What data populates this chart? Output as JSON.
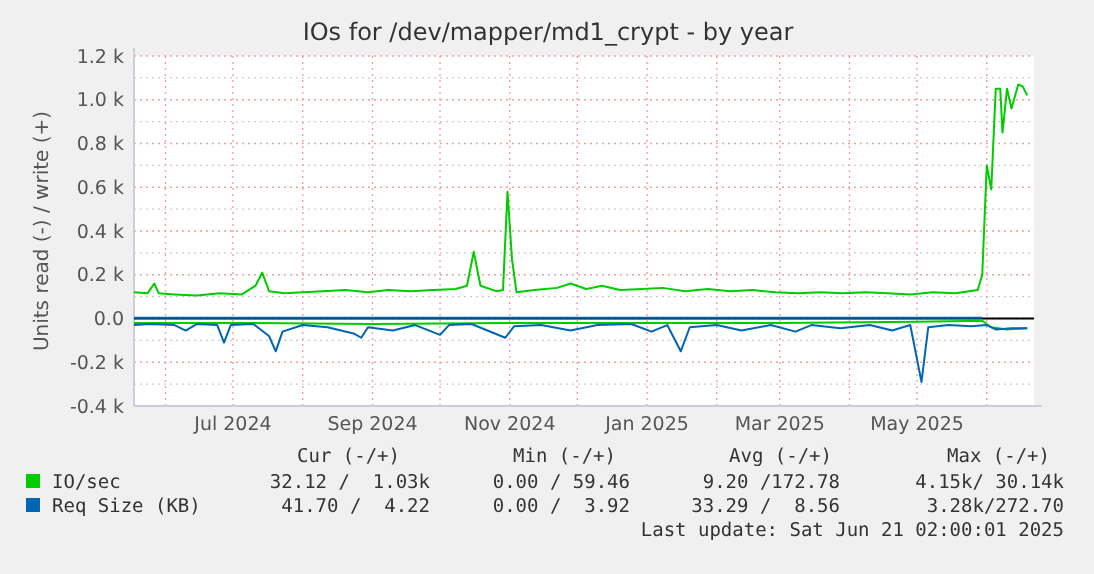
{
  "chart_data": {
    "type": "line",
    "title": "IOs for /dev/mapper/md1_crypt - by year",
    "ylabel": "Units read (-) / write (+)",
    "xlim": [
      "2024-05-18",
      "2025-06-22"
    ],
    "xticks": [
      {
        "value": "2024-06-01",
        "label": null
      },
      {
        "value": "2024-07-01",
        "label": "Jul 2024"
      },
      {
        "value": "2024-08-01",
        "label": null
      },
      {
        "value": "2024-09-01",
        "label": "Sep 2024"
      },
      {
        "value": "2024-10-01",
        "label": null
      },
      {
        "value": "2024-11-01",
        "label": "Nov 2024"
      },
      {
        "value": "2024-12-01",
        "label": null
      },
      {
        "value": "2025-01-01",
        "label": "Jan 2025"
      },
      {
        "value": "2025-02-01",
        "label": null
      },
      {
        "value": "2025-03-01",
        "label": "Mar 2025"
      },
      {
        "value": "2025-04-01",
        "label": null
      },
      {
        "value": "2025-05-01",
        "label": "May 2025"
      },
      {
        "value": "2025-06-01",
        "label": null
      }
    ],
    "ylim": [
      -400,
      1200
    ],
    "yticks": [
      {
        "value": -400,
        "label": "-0.4 k"
      },
      {
        "value": -300,
        "label": null
      },
      {
        "value": -200,
        "label": "-0.2 k"
      },
      {
        "value": -100,
        "label": null
      },
      {
        "value": 0,
        "label": "0.0"
      },
      {
        "value": 100,
        "label": null
      },
      {
        "value": 200,
        "label": "0.2 k"
      },
      {
        "value": 300,
        "label": null
      },
      {
        "value": 400,
        "label": "0.4 k"
      },
      {
        "value": 500,
        "label": null
      },
      {
        "value": 600,
        "label": "0.6 k"
      },
      {
        "value": 700,
        "label": null
      },
      {
        "value": 800,
        "label": "0.8 k"
      },
      {
        "value": 900,
        "label": null
      },
      {
        "value": 1000,
        "label": "1.0 k"
      },
      {
        "value": 1100,
        "label": null
      },
      {
        "value": 1200,
        "label": "1.2 k"
      }
    ],
    "grid": true,
    "legend": "bottom",
    "ref_lines": [
      {
        "axis": "y",
        "value": 0,
        "color": "#000000"
      }
    ],
    "series": [
      {
        "color": "#00cc00",
        "x": [
          "2024-05-18",
          "2024-07-01",
          "2024-09-01",
          "2024-10-31",
          "2025-01-01",
          "2025-03-01",
          "2025-05-01",
          "2025-05-30",
          "2025-06-03",
          "2025-06-10",
          "2025-06-19"
        ],
        "values": [
          -20,
          -20,
          -25,
          -20,
          -20,
          -20,
          -15,
          -10,
          -40,
          -50,
          -45
        ]
      },
      {
        "color": "#0066b3",
        "x": [
          "2024-05-18",
          "2024-05-25",
          "2024-06-05",
          "2024-06-10",
          "2024-06-15",
          "2024-06-24",
          "2024-06-27",
          "2024-06-30",
          "2024-07-10",
          "2024-07-17",
          "2024-07-20",
          "2024-07-23",
          "2024-08-01",
          "2024-08-12",
          "2024-08-24",
          "2024-08-27",
          "2024-08-30",
          "2024-09-10",
          "2024-09-20",
          "2024-10-01",
          "2024-10-05",
          "2024-10-15",
          "2024-10-30",
          "2024-11-03",
          "2024-11-15",
          "2024-11-28",
          "2024-12-10",
          "2024-12-25",
          "2025-01-03",
          "2025-01-10",
          "2025-01-16",
          "2025-01-20",
          "2025-02-01",
          "2025-02-12",
          "2025-02-25",
          "2025-03-08",
          "2025-03-15",
          "2025-03-28",
          "2025-04-10",
          "2025-04-20",
          "2025-04-28",
          "2025-05-03",
          "2025-05-06",
          "2025-05-15",
          "2025-05-25",
          "2025-06-01",
          "2025-06-05",
          "2025-06-12",
          "2025-06-19"
        ],
        "values": [
          -30,
          -25,
          -30,
          -55,
          -25,
          -30,
          -110,
          -30,
          -25,
          -80,
          -150,
          -60,
          -30,
          -40,
          -70,
          -88,
          -40,
          -55,
          -30,
          -75,
          -30,
          -25,
          -88,
          -35,
          -30,
          -55,
          -30,
          -25,
          -60,
          -30,
          -150,
          -40,
          -30,
          -55,
          -30,
          -60,
          -30,
          -45,
          -30,
          -55,
          -30,
          -290,
          -40,
          -30,
          -35,
          -30,
          -50,
          -45,
          -45
        ]
      },
      {
        "name": "IO/sec",
        "color": "#00cc00",
        "x": [
          "2024-05-18",
          "2024-05-24",
          "2024-05-27",
          "2024-05-29",
          "2024-06-05",
          "2024-06-15",
          "2024-06-25",
          "2024-07-05",
          "2024-07-11",
          "2024-07-14",
          "2024-07-17",
          "2024-07-24",
          "2024-08-01",
          "2024-08-10",
          "2024-08-20",
          "2024-08-30",
          "2024-09-08",
          "2024-09-18",
          "2024-09-28",
          "2024-10-08",
          "2024-10-13",
          "2024-10-16",
          "2024-10-19",
          "2024-10-26",
          "2024-10-29",
          "2024-10-31",
          "2024-11-02",
          "2024-11-04",
          "2024-11-12",
          "2024-11-22",
          "2024-11-28",
          "2024-12-05",
          "2024-12-12",
          "2024-12-20",
          "2024-12-30",
          "2025-01-08",
          "2025-01-18",
          "2025-01-28",
          "2025-02-07",
          "2025-02-17",
          "2025-02-27",
          "2025-03-09",
          "2025-03-19",
          "2025-03-29",
          "2025-04-08",
          "2025-04-18",
          "2025-04-28",
          "2025-05-08",
          "2025-05-18",
          "2025-05-28",
          "2025-05-30",
          "2025-06-01",
          "2025-06-03",
          "2025-06-05",
          "2025-06-07",
          "2025-06-08",
          "2025-06-10",
          "2025-06-12",
          "2025-06-15",
          "2025-06-17",
          "2025-06-19"
        ],
        "values": [
          120,
          115,
          160,
          115,
          110,
          105,
          115,
          110,
          150,
          210,
          125,
          115,
          120,
          125,
          130,
          120,
          130,
          125,
          130,
          135,
          150,
          305,
          150,
          125,
          130,
          580,
          270,
          120,
          130,
          140,
          160,
          135,
          150,
          130,
          135,
          140,
          125,
          135,
          125,
          130,
          120,
          115,
          120,
          115,
          120,
          115,
          110,
          120,
          115,
          130,
          200,
          700,
          590,
          1050,
          1050,
          850,
          1050,
          960,
          1070,
          1060,
          1020
        ]
      },
      {
        "name": "Req Size (KB)",
        "color": "#0066b3",
        "x": [
          "2024-05-18",
          "2024-09-01",
          "2025-01-01",
          "2025-05-30"
        ],
        "values": [
          4,
          4,
          4,
          4
        ]
      }
    ],
    "annotations": [
      "Cur (-/+)",
      "Min (-/+)",
      "Avg (-/+)",
      "Max (-/+)",
      "32.12 /  1.03k",
      "0.00 / 59.46",
      "9.20 /172.78",
      "4.15k/ 30.14k",
      "41.70 /  4.22",
      "0.00 /  3.92",
      "33.29 /  8.56",
      "3.28k/272.70",
      "Last update: Sat Jun 21 02:00:01 2025"
    ]
  }
}
